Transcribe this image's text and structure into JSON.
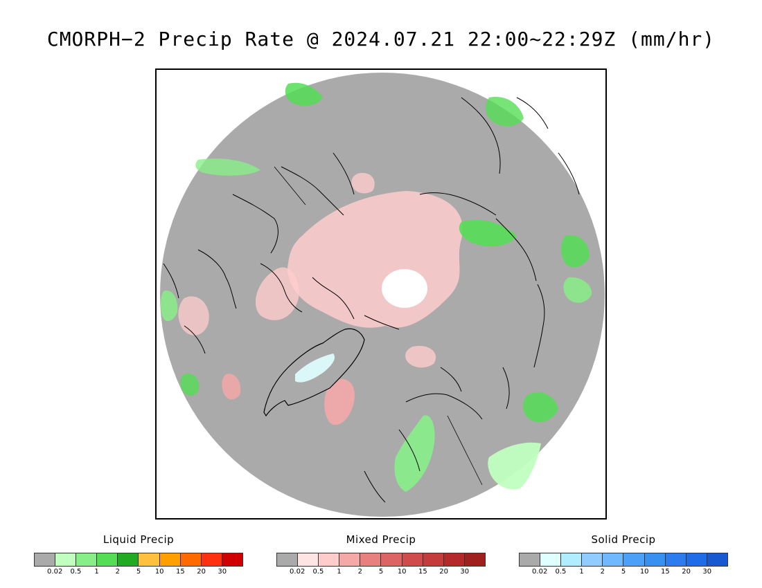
{
  "title": "CMORPH−2 Precip Rate @ 2024.07.21 22:00~22:29Z (mm/hr)",
  "map": {
    "projection": "north-polar-stereographic",
    "background_no_precip_color": "#aaaaaa",
    "no_data_color": "#ffffff",
    "coastline_color": "#000000"
  },
  "legends": [
    {
      "title": "Liquid Precip",
      "ticks": [
        "0.02",
        "0.5",
        "1",
        "2",
        "5",
        "10",
        "15",
        "20",
        "30"
      ],
      "colors": [
        "#aaaaaa",
        "#c0ffc0",
        "#88ee88",
        "#55dd55",
        "#22aa22",
        "#ffc040",
        "#ffa000",
        "#ff6a00",
        "#ff3010",
        "#d00000"
      ]
    },
    {
      "title": "Mixed Precip",
      "ticks": [
        "0.02",
        "0.5",
        "1",
        "2",
        "5",
        "10",
        "15",
        "20",
        "30"
      ],
      "colors": [
        "#aaaaaa",
        "#ffe4e4",
        "#ffcccc",
        "#f4a8a8",
        "#e88080",
        "#dc6464",
        "#d04c4c",
        "#c43c3c",
        "#b42a2a",
        "#a02020"
      ]
    },
    {
      "title": "Solid Precip",
      "ticks": [
        "0.02",
        "0.5",
        "1",
        "2",
        "5",
        "10",
        "15",
        "20",
        "30"
      ],
      "colors": [
        "#aaaaaa",
        "#e0ffff",
        "#b0eeff",
        "#90ccff",
        "#70b8ff",
        "#4ca0f8",
        "#3890f0",
        "#2c7cf0",
        "#206ce8",
        "#1858d0"
      ]
    }
  ]
}
